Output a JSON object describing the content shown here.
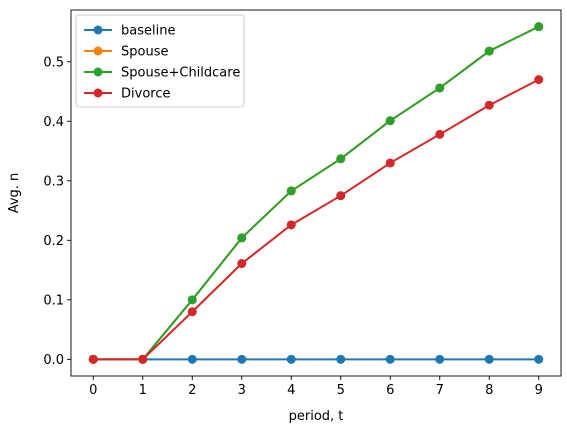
{
  "chart_data": {
    "type": "line",
    "title": "",
    "xlabel": "period, t",
    "ylabel": "Avg. n",
    "xlim": [
      -0.45,
      9.45
    ],
    "ylim": [
      -0.028,
      0.587
    ],
    "x": [
      0,
      1,
      2,
      3,
      4,
      5,
      6,
      7,
      8,
      9
    ],
    "xticks": [
      0,
      1,
      2,
      3,
      4,
      5,
      6,
      7,
      8,
      9
    ],
    "yticks": [
      0.0,
      0.1,
      0.2,
      0.3,
      0.4,
      0.5
    ],
    "ytick_labels": [
      "0.0",
      "0.1",
      "0.2",
      "0.3",
      "0.4",
      "0.5"
    ],
    "grid": false,
    "legend_position": "top-left",
    "series": [
      {
        "name": "baseline",
        "color": "#1f77b4",
        "values": [
          0,
          0,
          0,
          0,
          0,
          0,
          0,
          0,
          0,
          0
        ]
      },
      {
        "name": "Spouse",
        "color": "#ff7f0e",
        "values": [
          0,
          0,
          0.1,
          0.204,
          0.283,
          0.337,
          0.401,
          0.456,
          0.518,
          0.559
        ]
      },
      {
        "name": "Spouse+Childcare",
        "color": "#2ca02c",
        "values": [
          0,
          0,
          0.1,
          0.204,
          0.283,
          0.337,
          0.401,
          0.456,
          0.518,
          0.559
        ]
      },
      {
        "name": "Divorce",
        "color": "#d62728",
        "values": [
          0,
          0,
          0.08,
          0.161,
          0.226,
          0.275,
          0.33,
          0.378,
          0.427,
          0.47
        ]
      }
    ]
  }
}
